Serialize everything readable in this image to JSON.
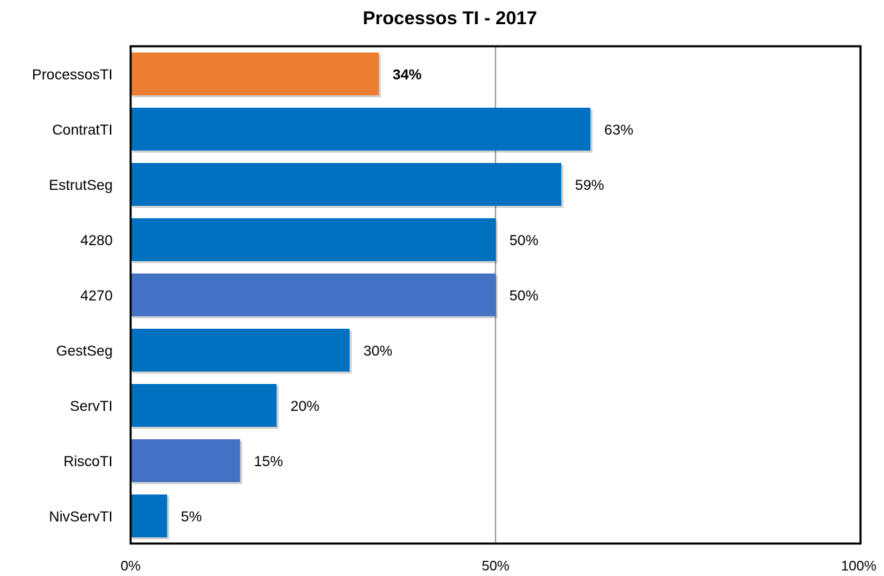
{
  "chart_data": {
    "type": "bar",
    "orientation": "horizontal",
    "title": "Processos TI -  2017",
    "xlabel": "",
    "ylabel": "",
    "xlim": [
      0,
      100
    ],
    "grid": false,
    "legend": "none",
    "categories": [
      "ProcessosTI",
      "ContratTI",
      "EstrutSeg",
      "4280",
      "4270",
      "GestSeg",
      "ServTI",
      "RiscoTI",
      "NivServTI"
    ],
    "values": [
      34,
      63,
      59,
      50,
      50,
      30,
      20,
      15,
      5
    ],
    "data_labels": [
      "34%",
      "63%",
      "59%",
      "50%",
      "50%",
      "30%",
      "20%",
      "15%",
      "5%"
    ],
    "bar_colors": [
      "#ED7D31",
      "#0070C0",
      "#0070C0",
      "#0070C0",
      "#4472C4",
      "#0070C0",
      "#0070C0",
      "#4472C4",
      "#0070C0"
    ],
    "highlight_label_color": "#C55A11",
    "x_ticks": [
      {
        "value": 0,
        "label": "0%"
      },
      {
        "value": 50,
        "label": "50%"
      },
      {
        "value": 100,
        "label": "100%"
      }
    ],
    "reference_line": 50,
    "reference_line_color": "#808080"
  }
}
